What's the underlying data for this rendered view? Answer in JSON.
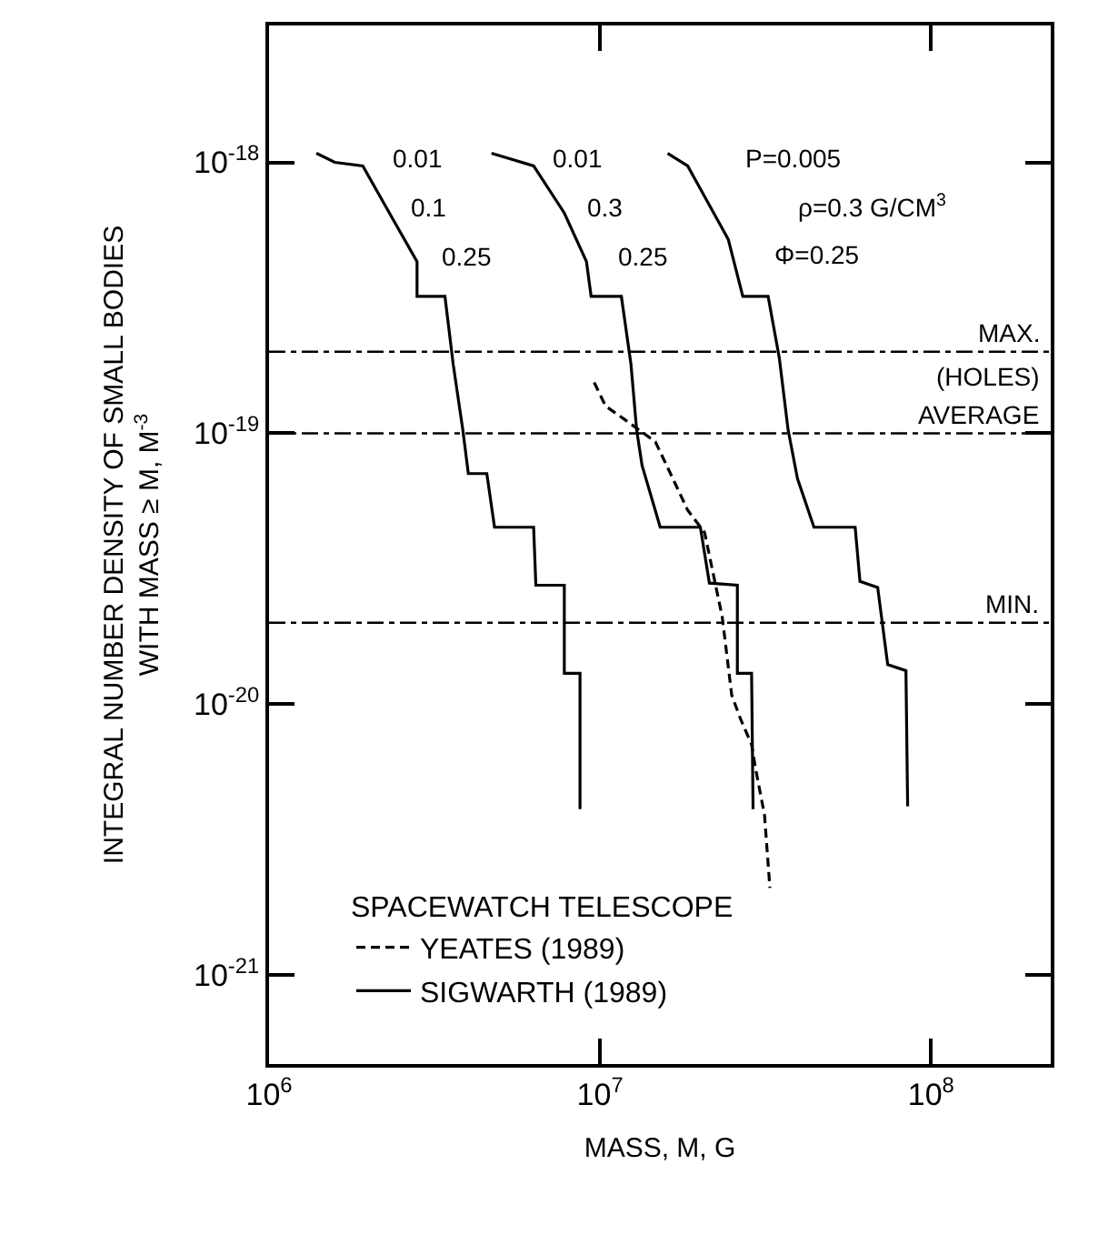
{
  "chart_data": {
    "type": "line",
    "xlabel": "MASS, M, G",
    "ylabel": "INTEGRAL NUMBER DENSITY OF SMALL BODIES\nWITH MASS ≥ M, M$^{-3}$",
    "log": "xy",
    "xlim": [
      1000000.0,
      230000000.0
    ],
    "xticks": [
      {
        "value": 1000000.0,
        "label": "10$^{6}$"
      },
      {
        "value": 10000000.0,
        "label": "10$^{7}$"
      },
      {
        "value": 100000000.0,
        "label": "10$^{8}$"
      }
    ],
    "ylim": [
      4.7e-22,
      3.2e-18
    ],
    "yticks": [
      {
        "value": 1e-21,
        "label": "10$^{-21}$"
      },
      {
        "value": 1e-20,
        "label": "10$^{-20}$"
      },
      {
        "value": 1e-19,
        "label": "10$^{-19}$"
      },
      {
        "value": 1e-18,
        "label": "10$^{-18}$"
      }
    ],
    "legend": "bottom left",
    "legend_title": "SPACEWATCH TELESCOPE",
    "marker": "none",
    "series": [
      {
        "name": "YEATES (1989)",
        "color": "#000000",
        "line_style": "dashed",
        "x": [
          9600000.0,
          10400000.0,
          11800000.0,
          14700000.0,
          16600000.0,
          18400000.0,
          20700000.0,
          23400000.0,
          25000000.0,
          26600000.0,
          28700000.0,
          29500000.0,
          31400000.0,
          32600000.0
        ],
        "values": [
          1.54e-19,
          1.26e-19,
          1.13e-19,
          9.3e-20,
          6.8e-20,
          5.2e-20,
          4.3e-20,
          2.1e-20,
          1.08e-20,
          8.8e-21,
          7.1e-21,
          5.8e-21,
          3.9e-21,
          2.1e-21
        ]
      },
      {
        "name": "SIGWARTH (1989)",
        "color": "#000000",
        "line_style": "solid",
        "x": [
          1390000.0,
          1580000.0,
          1920000.0,
          2380000.0,
          2800000.0,
          2800000.0,
          3400000.0,
          3600000.0,
          3850000.0,
          4000000.0,
          4550000.0,
          4800000.0,
          6300000.0,
          6400000.0,
          7800000.0,
          7800000.0,
          8700000.0,
          8700000.0
        ],
        "values": [
          1.08e-18,
          1e-18,
          9.7e-19,
          6.1e-19,
          4.3e-19,
          3.2e-19,
          3.2e-19,
          1.8e-19,
          1.03e-19,
          7.1e-20,
          7.1e-20,
          4.5e-20,
          4.5e-20,
          2.75e-20,
          2.75e-20,
          1.3e-20,
          1.3e-20,
          4.1e-21
        ]
      },
      {
        "color": "#000000",
        "line_style": "solid",
        "x": [
          4700000.0,
          6300000.0,
          7800000.0,
          9100000.0,
          9400000.0,
          11600000.0,
          12400000.0,
          12900000.0,
          13400000.0,
          15200000.0,
          20100000.0,
          21400000.0,
          26000000.0,
          26000000.0,
          28700000.0,
          29000000.0
        ],
        "values": [
          1.08e-18,
          9.7e-19,
          6.5e-19,
          4.3e-19,
          3.2e-19,
          3.2e-19,
          1.8e-19,
          1.03e-19,
          7.6e-20,
          4.5e-20,
          4.5e-20,
          2.8e-20,
          2.75e-20,
          1.3e-20,
          1.3e-20,
          4.1e-21
        ]
      },
      {
        "color": "#000000",
        "line_style": "solid",
        "x": [
          16000000.0,
          18400000.0,
          24400000.0,
          27000000.0,
          32200000.0,
          34800000.0,
          37000000.0,
          39500000.0,
          44300000.0,
          59000000.0,
          61000000.0,
          69000000.0,
          74000000.0,
          84000000.0,
          85000000.0
        ],
        "values": [
          1.08e-18,
          9.7e-19,
          5.2e-19,
          3.2e-19,
          3.2e-19,
          1.9e-19,
          1.03e-19,
          6.8e-20,
          4.5e-20,
          4.5e-20,
          2.84e-20,
          2.7e-20,
          1.4e-20,
          1.33e-20,
          4.2e-21
        ]
      }
    ],
    "ref_lines": [
      {
        "axis": "y",
        "value": 2e-19,
        "label": "MAX.",
        "line_style": "dashdot",
        "color": "#000000"
      },
      {
        "axis": "y",
        "value": 1e-19,
        "label": "AVERAGE",
        "line_style": "dashdot",
        "color": "#000000"
      },
      {
        "axis": "y",
        "value": 2e-20,
        "label": "MIN.",
        "line_style": "dashdot",
        "color": "#000000"
      }
    ],
    "annotations": [
      {
        "text": "0.01",
        "x": 2800000.0,
        "y": 1.03e-18
      },
      {
        "text": "0.1",
        "x": 3060000.0,
        "y": 6.8e-19
      },
      {
        "text": "0.25",
        "x": 3950000.0,
        "y": 4.5e-19
      },
      {
        "text": "0.01",
        "x": 8500000.0,
        "y": 1.03e-18
      },
      {
        "text": "0.3",
        "x": 10400000.0,
        "y": 6.8e-19
      },
      {
        "text": "0.25",
        "x": 13400000.0,
        "y": 4.5e-19
      },
      "P=0.005",
      "ρ=0.3 G/CM$^{3}$",
      "Φ=0.25",
      "(HOLES)"
    ]
  }
}
